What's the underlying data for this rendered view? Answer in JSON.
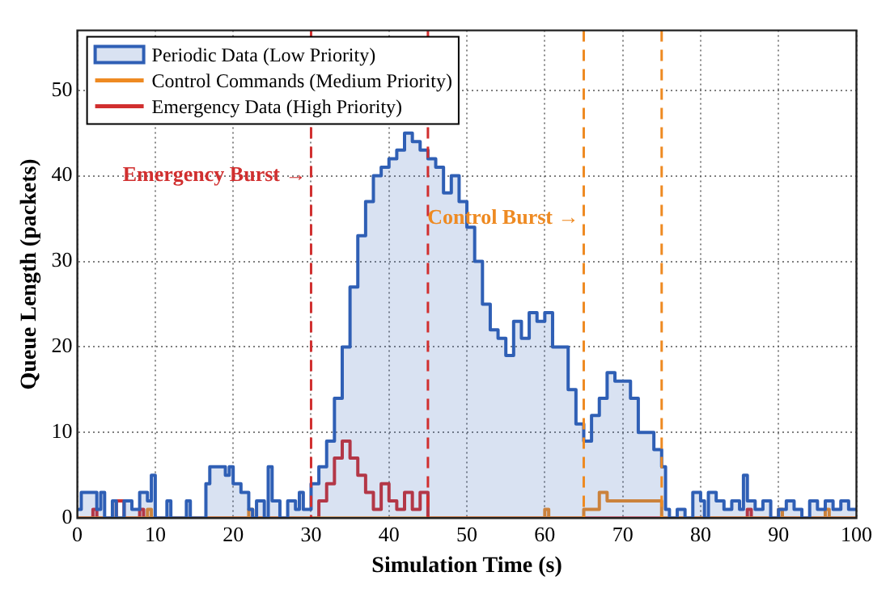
{
  "chart_data": {
    "type": "step",
    "xlabel": "Simulation Time (s)",
    "ylabel": "Queue Length (packets)",
    "xlim": [
      0,
      100
    ],
    "xticks": [
      0,
      10,
      20,
      30,
      40,
      50,
      60,
      70,
      80,
      90,
      100
    ],
    "ylim": [
      0,
      57
    ],
    "yticks": [
      0,
      10,
      20,
      30,
      40,
      50
    ],
    "grid": true,
    "legend": "top left",
    "marker": "none",
    "series": [
      {
        "name": "Periodic Data (Low Priority)",
        "type": "area",
        "color": "#2f5fb5",
        "x": [
          0,
          0.5,
          2.5,
          3,
          3.5,
          4.5,
          5,
          6,
          7,
          8,
          9,
          9.5,
          10,
          11,
          11.5,
          12,
          14,
          14.5,
          16,
          16.5,
          17,
          19,
          19.5,
          20,
          21,
          22,
          22.5,
          23,
          24,
          24.5,
          25,
          26,
          27,
          28,
          28.5,
          29,
          30,
          31,
          32,
          33,
          34,
          35,
          36,
          37,
          38,
          39,
          40,
          41,
          42,
          43,
          44,
          45,
          46,
          47,
          48,
          49,
          50,
          51,
          52,
          53,
          54,
          55,
          56,
          57,
          58,
          59,
          60,
          61,
          62,
          63,
          64,
          65,
          66,
          67,
          68,
          69,
          70,
          71,
          72,
          73,
          74,
          75,
          75.5,
          76,
          77,
          78,
          79,
          80,
          80.5,
          81,
          82,
          83,
          84,
          85,
          85.5,
          86,
          87,
          88,
          89,
          90,
          91,
          92,
          93,
          94,
          95,
          96,
          97,
          98,
          99,
          100
        ],
        "values": [
          1,
          3,
          1,
          3,
          0,
          2,
          0,
          2,
          1,
          3,
          2,
          5,
          0,
          0,
          2,
          0,
          2,
          0,
          0,
          4,
          6,
          5,
          6,
          4,
          3,
          1,
          0,
          2,
          0,
          6,
          2,
          0,
          2,
          1,
          3,
          1,
          4,
          6,
          9,
          14,
          20,
          27,
          33,
          37,
          40,
          41,
          42,
          43,
          45,
          44,
          43,
          42,
          41,
          38,
          40,
          37,
          34,
          30,
          25,
          22,
          21,
          19,
          23,
          21,
          24,
          23,
          24,
          20,
          20,
          15,
          11,
          9,
          12,
          14,
          17,
          16,
          16,
          14,
          10,
          10,
          8,
          6,
          1,
          0,
          1,
          0,
          3,
          2,
          0,
          3,
          2,
          1,
          2,
          1,
          5,
          2,
          1,
          2,
          0,
          1,
          2,
          1,
          0,
          2,
          1,
          2,
          1,
          2,
          1,
          1
        ]
      },
      {
        "name": "Control Commands (Medium Priority)",
        "type": "step",
        "color": "#ee8a22",
        "x": [
          0,
          9,
          9.5,
          22,
          22.5,
          60,
          60.5,
          65,
          66,
          67,
          68,
          69,
          70,
          71,
          72,
          73,
          74,
          75,
          90,
          90.5,
          96,
          96.5,
          100
        ],
        "values": [
          0,
          1,
          0,
          1,
          0,
          1,
          0,
          1,
          1,
          3,
          2,
          2,
          2,
          2,
          2,
          2,
          2,
          0,
          1,
          0,
          1,
          0,
          0
        ]
      },
      {
        "name": "Emergency Data (High Priority)",
        "type": "step",
        "color": "#d12f2f",
        "x": [
          0,
          2,
          2.5,
          5,
          6,
          8,
          8.5,
          30,
          31,
          32,
          33,
          34,
          35,
          36,
          37,
          38,
          39,
          40,
          41,
          42,
          43,
          44,
          45,
          86,
          86.5,
          100
        ],
        "values": [
          0,
          1,
          0,
          2,
          0,
          1,
          0,
          0,
          2,
          4,
          7,
          9,
          7,
          5,
          3,
          1,
          4,
          2,
          1,
          3,
          1,
          3,
          0,
          1,
          0,
          0
        ]
      }
    ],
    "ref_lines": [
      {
        "axis": "x",
        "value": 30,
        "color": "#d12f2f",
        "line_style": "dashed"
      },
      {
        "axis": "x",
        "value": 45,
        "color": "#d12f2f",
        "line_style": "dashed"
      },
      {
        "axis": "x",
        "value": 65,
        "color": "#ee8a22",
        "line_style": "dashed"
      },
      {
        "axis": "x",
        "value": 75,
        "color": "#ee8a22",
        "line_style": "dashed"
      }
    ],
    "annotations": [
      {
        "text": "Emergency Burst →",
        "x": 30,
        "y": 40
      },
      {
        "text": "Control Burst →",
        "x": 65,
        "y": 35
      }
    ]
  }
}
